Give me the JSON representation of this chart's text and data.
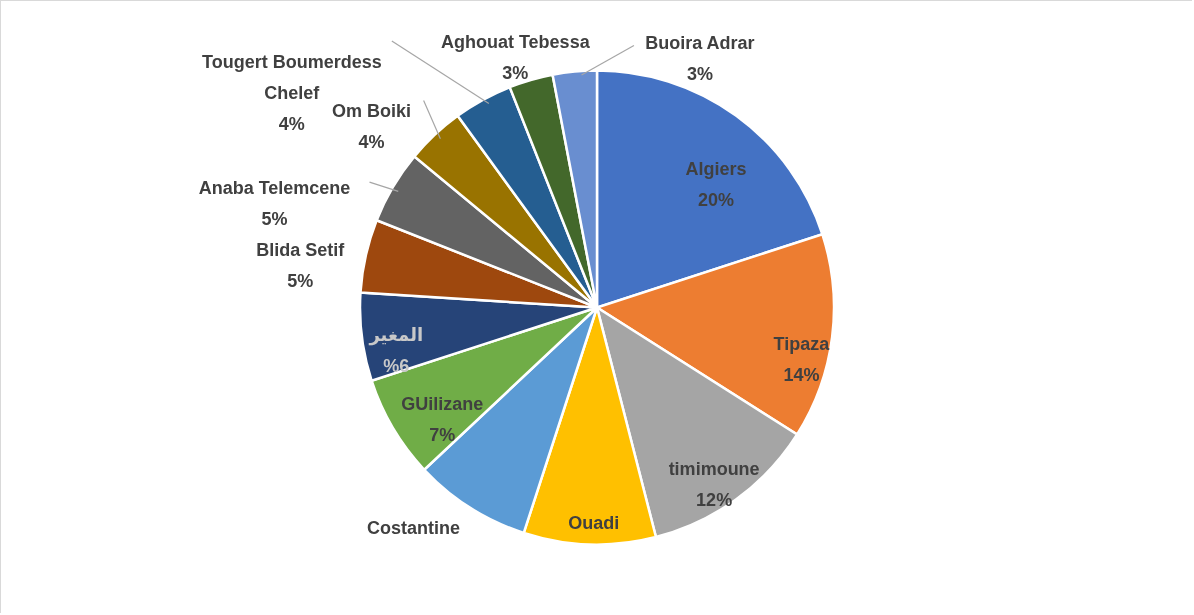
{
  "chart_data": {
    "type": "pie",
    "categories": [
      "Algiers",
      "Tipaza",
      "timimoune",
      "Ouadi",
      "Costantine",
      "GUilizane",
      "المغير",
      "Blida  Setif",
      "Anaba  Telemcene",
      "Om Boiki",
      "Tougert Boumerdess Chelef",
      "Aghouat  Tebessa",
      "Buoira   Adrar"
    ],
    "values": [
      20,
      14,
      12,
      9,
      8,
      7,
      6,
      5,
      5,
      4,
      4,
      3,
      3
    ],
    "value_labels": [
      "20%",
      "14%",
      "12%",
      null,
      null,
      "7%",
      "%6",
      "5%",
      "5%",
      "4%",
      "4%",
      "3%",
      "3%"
    ],
    "colors": [
      "#4472c4",
      "#ed7d31",
      "#a5a5a5",
      "#ffc000",
      "#5b9bd5",
      "#70ad47",
      "#264478",
      "#9e480e",
      "#636363",
      "#997300",
      "#255e91",
      "#43682b",
      "#698ed0"
    ]
  }
}
